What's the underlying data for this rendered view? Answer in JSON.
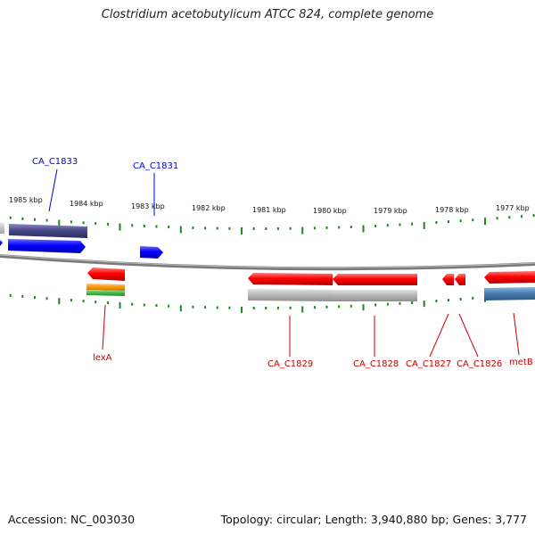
{
  "title": "Clostridium acetobutylicum ATCC 824, complete genome",
  "footer": {
    "accession": "Accession: NC_003030",
    "summary": "Topology: circular; Length: 3,940,880 bp; Genes: 3,777"
  },
  "kbp_labels": [
    "1985 kbp",
    "1984 kbp",
    "1983 kbp",
    "1982 kbp",
    "1981 kbp",
    "1980 kbp",
    "1979 kbp",
    "1978 kbp",
    "1977 kbp"
  ],
  "gene_labels": {
    "forward": [
      "CA_C1833",
      "CA_C1831"
    ],
    "reverse": [
      "lexA",
      "CA_C1829",
      "CA_C1828",
      "CA_C1827",
      "CA_C1826",
      "metB"
    ]
  },
  "colors": {
    "forward_label": "#0000cc",
    "reverse_label": "#cc0000",
    "tick": "#1a8a1a",
    "backbone": "#888888",
    "gene_forward": "#0000ff",
    "gene_reverse": "#ff0000",
    "gene_purple": "#4a4a8a",
    "gene_orange": "#ff9900",
    "gene_green": "#44bb44",
    "gene_gray": "#b8b8b8",
    "gene_steel": "#4a7fb0"
  }
}
